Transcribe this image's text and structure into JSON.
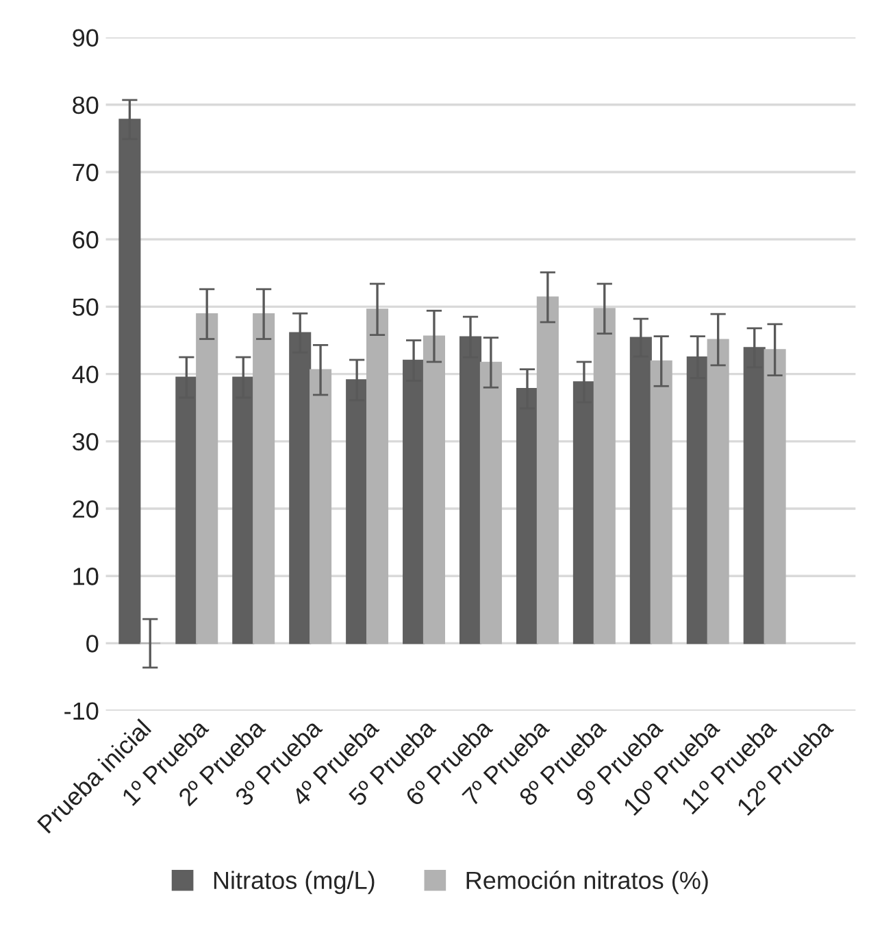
{
  "chart_data": {
    "type": "bar",
    "categories": [
      "Prueba inicial",
      "1º Prueba",
      "2º Prueba",
      "3º Prueba",
      "4º Prueba",
      "5º Prueba",
      "6º Prueba",
      "7º Prueba",
      "8º Prueba",
      "9º Prueba",
      "10º Prueba",
      "11º Prueba",
      "12º Prueba"
    ],
    "series": [
      {
        "name": "Nitratos (mg/L)",
        "color": "#5f5f5f",
        "values": [
          77.8,
          39.5,
          39.5,
          46.1,
          39.1,
          42.0,
          45.5,
          37.8,
          38.8,
          45.4,
          42.5,
          43.9,
          null
        ],
        "errors": [
          2.9,
          3.0,
          3.0,
          2.9,
          3.0,
          3.0,
          3.0,
          2.9,
          3.0,
          2.8,
          3.1,
          2.9,
          null
        ]
      },
      {
        "name": "Remoción nitratos (%)",
        "color": "#b2b2b2",
        "values": [
          0,
          48.9,
          48.9,
          40.6,
          49.6,
          45.6,
          41.7,
          51.4,
          49.7,
          41.9,
          45.1,
          43.6,
          null
        ],
        "errors": [
          3.6,
          3.7,
          3.7,
          3.7,
          3.8,
          3.8,
          3.7,
          3.7,
          3.7,
          3.7,
          3.8,
          3.8,
          null
        ]
      }
    ],
    "ylim": [
      -10,
      90
    ],
    "yticks": [
      -10,
      0,
      10,
      20,
      30,
      40,
      50,
      60,
      70,
      80,
      90
    ],
    "grid": "y",
    "legend": "bottom"
  }
}
